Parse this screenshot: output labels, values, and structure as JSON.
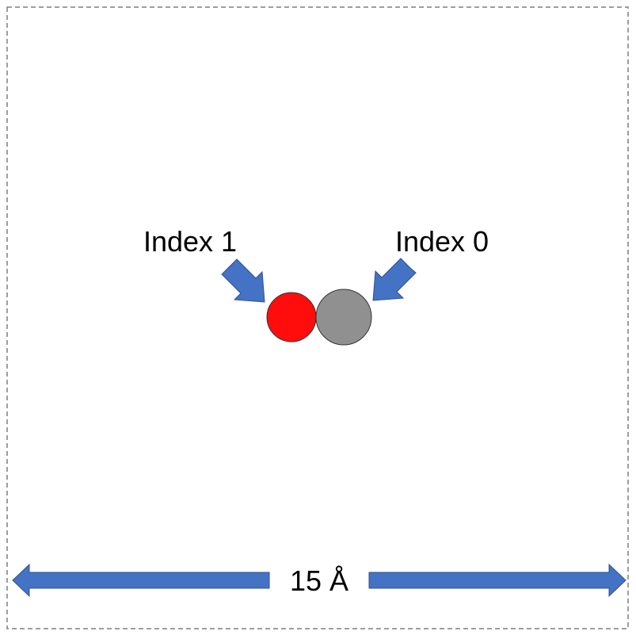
{
  "diagram": {
    "labels": {
      "index_1": "Index 1",
      "index_0": "Index 0",
      "dimension": "15 Å"
    },
    "atoms": [
      {
        "name": "atom-index-1",
        "color": "#ff0d0d"
      },
      {
        "name": "atom-index-0",
        "color": "#909090"
      }
    ],
    "colors": {
      "arrow_fill": "#4472c4",
      "arrow_stroke": "#2f528f",
      "box_border": "#7f7f7f",
      "atom_stroke": "#333333"
    }
  }
}
